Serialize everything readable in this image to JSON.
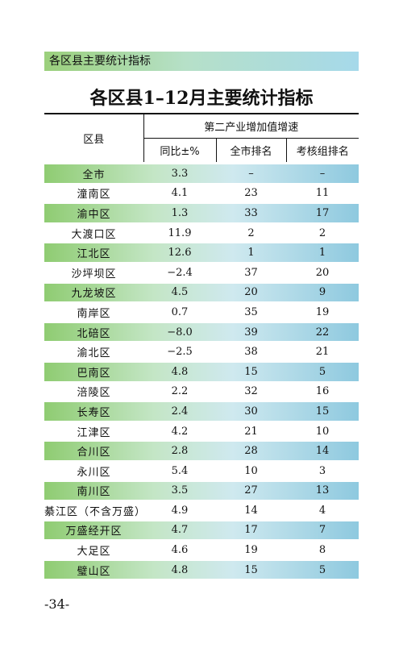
{
  "header": {
    "section": "各区县主要统计指标",
    "title": "各区县1–12月主要统计指标"
  },
  "table": {
    "header": {
      "region": "区县",
      "group": "第二产业增加值增速",
      "columns": [
        "同比±%",
        "全市排名",
        "考核组排名"
      ]
    },
    "rows": [
      [
        "全市",
        "3.3",
        "–",
        "–"
      ],
      [
        "潼南区",
        "4.1",
        "23",
        "11"
      ],
      [
        "渝中区",
        "1.3",
        "33",
        "17"
      ],
      [
        "大渡口区",
        "11.9",
        "2",
        "2"
      ],
      [
        "江北区",
        "12.6",
        "1",
        "1"
      ],
      [
        "沙坪坝区",
        "−2.4",
        "37",
        "20"
      ],
      [
        "九龙坡区",
        "4.5",
        "20",
        "9"
      ],
      [
        "南岸区",
        "0.7",
        "35",
        "19"
      ],
      [
        "北碚区",
        "−8.0",
        "39",
        "22"
      ],
      [
        "渝北区",
        "−2.5",
        "38",
        "21"
      ],
      [
        "巴南区",
        "4.8",
        "15",
        "5"
      ],
      [
        "涪陵区",
        "2.2",
        "32",
        "16"
      ],
      [
        "长寿区",
        "2.4",
        "30",
        "15"
      ],
      [
        "江津区",
        "4.2",
        "21",
        "10"
      ],
      [
        "合川区",
        "2.8",
        "28",
        "14"
      ],
      [
        "永川区",
        "5.4",
        "10",
        "3"
      ],
      [
        "南川区",
        "3.5",
        "27",
        "13"
      ],
      [
        "綦江区（不含万盛）",
        "4.9",
        "14",
        "4"
      ],
      [
        "万盛经开区",
        "4.7",
        "17",
        "7"
      ],
      [
        "大足区",
        "4.6",
        "19",
        "8"
      ],
      [
        "璧山区",
        "4.8",
        "15",
        "5"
      ]
    ]
  },
  "footer": {
    "page_number": "-34-"
  }
}
